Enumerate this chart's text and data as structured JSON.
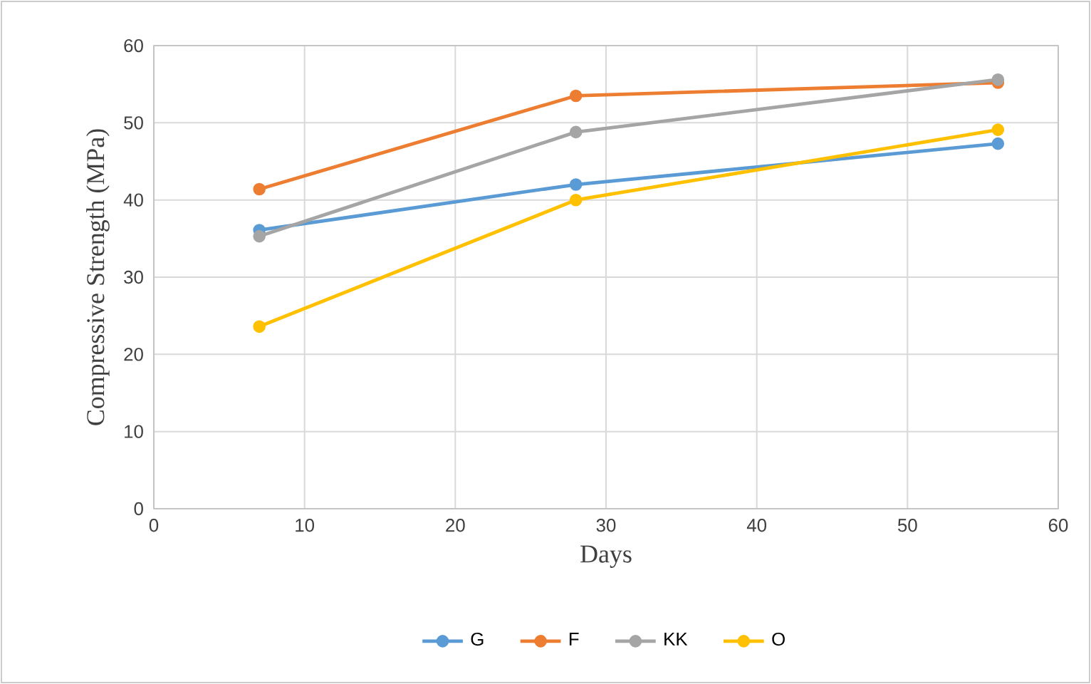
{
  "chart_data": {
    "type": "line",
    "xlabel": "Days",
    "ylabel": "Compressive Strength (MPa)",
    "x": [
      7,
      28,
      56
    ],
    "series": [
      {
        "name": "G",
        "color": "#5b9bd5",
        "values": [
          36.1,
          42.0,
          47.3
        ]
      },
      {
        "name": "F",
        "color": "#ed7d31",
        "values": [
          41.4,
          53.5,
          55.2
        ]
      },
      {
        "name": "KK",
        "color": "#a5a5a5",
        "values": [
          35.3,
          48.8,
          55.6
        ]
      },
      {
        "name": "O",
        "color": "#ffc000",
        "values": [
          23.6,
          40.0,
          49.1
        ]
      }
    ],
    "xlim": [
      0,
      60
    ],
    "xticks": [
      0,
      10,
      20,
      30,
      40,
      50,
      60
    ],
    "ylim": [
      0,
      60
    ],
    "yticks": [
      0,
      10,
      20,
      30,
      40,
      50,
      60
    ],
    "grid": true,
    "legend": "bottom",
    "marker": "circle",
    "line_style": "solid"
  }
}
